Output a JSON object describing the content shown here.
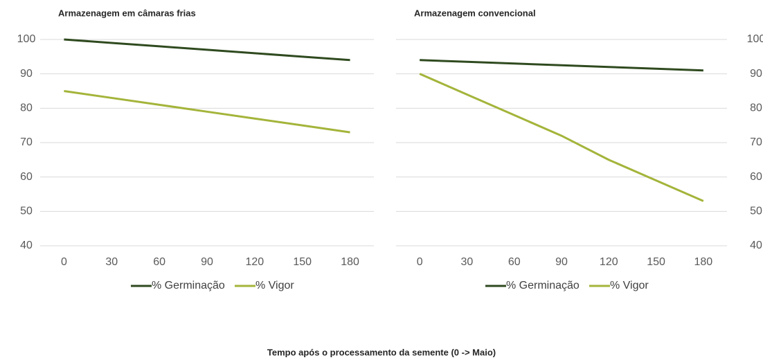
{
  "chart_data": [
    {
      "type": "line",
      "title": "Armazenagem em câmaras frias",
      "categories": [
        "0",
        "30",
        "60",
        "90",
        "120",
        "150",
        "180"
      ],
      "series": [
        {
          "name": "% Germinação",
          "color": "#2f4a1f",
          "values": [
            100,
            99,
            98,
            97,
            96,
            95,
            94
          ]
        },
        {
          "name": "% Vigor",
          "color": "#a4b43a",
          "values": [
            85,
            83,
            81,
            79,
            77,
            75,
            73
          ]
        }
      ],
      "ylim": [
        40,
        100
      ],
      "yticks": [
        40,
        50,
        60,
        70,
        80,
        90,
        100
      ],
      "grid": true,
      "y_axis_side": "left",
      "legend": "bottom"
    },
    {
      "type": "line",
      "title": "Armazenagem convencional",
      "categories": [
        "0",
        "30",
        "60",
        "90",
        "120",
        "150",
        "180"
      ],
      "series": [
        {
          "name": "% Germinação",
          "color": "#2f4a1f",
          "values": [
            94,
            93.5,
            93,
            92.5,
            92,
            91.5,
            91
          ]
        },
        {
          "name": "% Vigor",
          "color": "#a4b43a",
          "values": [
            90,
            84,
            78,
            72,
            65,
            59,
            53
          ]
        }
      ],
      "ylim": [
        40,
        100
      ],
      "yticks": [
        40,
        50,
        60,
        70,
        80,
        90,
        100
      ],
      "grid": true,
      "y_axis_side": "right",
      "legend": "bottom"
    }
  ],
  "footer": {
    "xlabel": "Tempo após o processamento da semente (0 -> Maio)"
  }
}
